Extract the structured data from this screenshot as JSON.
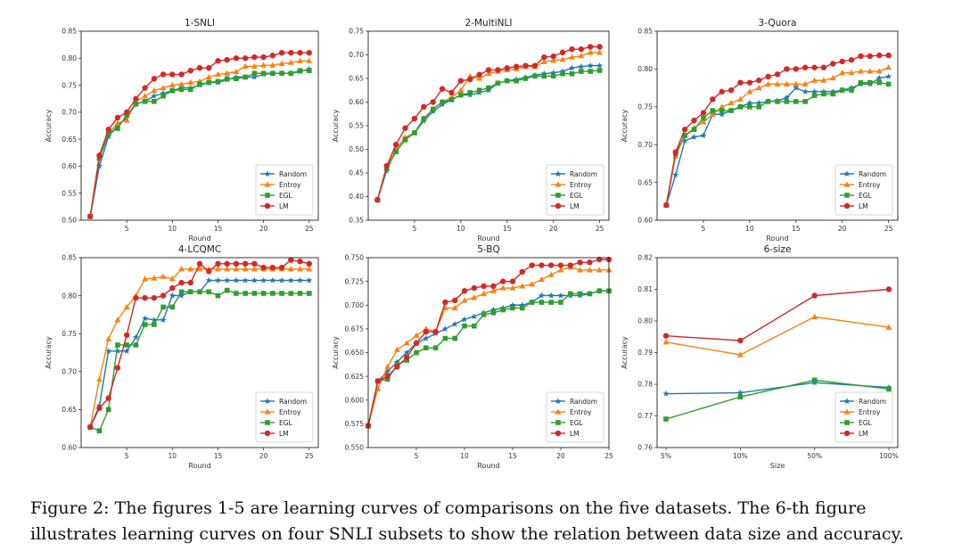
{
  "caption": "Figure 2: The figures 1-5 are learning curves of comparisons on the five datasets. The 6-th figure illustrates learning curves on four SNLI subsets to show the relation between data size and accuracy.",
  "legend": [
    "Random",
    "Entroy",
    "EGL",
    "LM"
  ],
  "colors": {
    "Random": "#1f77b4",
    "Entroy": "#ff7f0e",
    "EGL": "#2ca02c",
    "LM": "#d62728"
  },
  "markers": {
    "Random": "star",
    "Entroy": "triangle",
    "EGL": "square",
    "LM": "circle"
  },
  "chart_data": [
    {
      "type": "line",
      "title": "1-SNLI",
      "xlabel": "Round",
      "ylabel": "Accuracy",
      "xlim": [
        0,
        26
      ],
      "ylim": [
        0.5,
        0.85
      ],
      "xticks": [
        5,
        10,
        15,
        20,
        25
      ],
      "xtick_labels": [
        "5",
        "10",
        "15",
        "20",
        "25"
      ],
      "yticks": [
        0.5,
        0.55,
        0.6,
        0.65,
        0.7,
        0.75,
        0.8,
        0.85
      ],
      "ytick_labels": [
        "0.50",
        "0.55",
        "0.60",
        "0.65",
        "0.70",
        "0.75",
        "0.80",
        "0.85"
      ],
      "legend_position": "lower-right",
      "x": [
        1,
        2,
        3,
        4,
        5,
        6,
        7,
        8,
        9,
        10,
        11,
        12,
        13,
        14,
        15,
        16,
        17,
        18,
        19,
        20,
        21,
        22,
        23,
        24,
        25
      ],
      "series": [
        {
          "name": "Random",
          "values": [
            0.507,
            0.6,
            0.655,
            0.675,
            0.69,
            0.715,
            0.72,
            0.73,
            0.735,
            0.74,
            0.745,
            0.745,
            0.75,
            0.755,
            0.755,
            0.76,
            0.765,
            0.765,
            0.765,
            0.77,
            0.772,
            0.772,
            0.772,
            0.775,
            0.78
          ]
        },
        {
          "name": "Entroy",
          "values": [
            0.507,
            0.615,
            0.66,
            0.68,
            0.685,
            0.72,
            0.73,
            0.74,
            0.745,
            0.75,
            0.752,
            0.755,
            0.757,
            0.765,
            0.77,
            0.772,
            0.775,
            0.785,
            0.785,
            0.787,
            0.787,
            0.79,
            0.792,
            0.795,
            0.795
          ]
        },
        {
          "name": "EGL",
          "values": [
            0.507,
            0.615,
            0.66,
            0.67,
            0.695,
            0.715,
            0.72,
            0.72,
            0.73,
            0.74,
            0.742,
            0.742,
            0.752,
            0.755,
            0.757,
            0.762,
            0.762,
            0.765,
            0.772,
            0.772,
            0.772,
            0.772,
            0.772,
            0.777,
            0.777
          ]
        },
        {
          "name": "LM",
          "values": [
            0.507,
            0.62,
            0.668,
            0.69,
            0.7,
            0.725,
            0.745,
            0.762,
            0.77,
            0.77,
            0.77,
            0.777,
            0.782,
            0.782,
            0.795,
            0.797,
            0.8,
            0.8,
            0.802,
            0.802,
            0.805,
            0.81,
            0.81,
            0.81,
            0.81
          ]
        }
      ]
    },
    {
      "type": "line",
      "title": "2-MultiNLI",
      "xlabel": "Round",
      "ylabel": "Accuracy",
      "xlim": [
        0,
        26
      ],
      "ylim": [
        0.35,
        0.75
      ],
      "xticks": [
        5,
        10,
        15,
        20,
        25
      ],
      "xtick_labels": [
        "5",
        "10",
        "15",
        "20",
        "25"
      ],
      "yticks": [
        0.35,
        0.4,
        0.45,
        0.5,
        0.55,
        0.6,
        0.65,
        0.7,
        0.75
      ],
      "ytick_labels": [
        "0.35",
        "0.40",
        "0.45",
        "0.50",
        "0.55",
        "0.60",
        "0.65",
        "0.70",
        "0.75"
      ],
      "legend_position": "lower-right",
      "x": [
        1,
        2,
        3,
        4,
        5,
        6,
        7,
        8,
        9,
        10,
        11,
        12,
        13,
        14,
        15,
        16,
        17,
        18,
        19,
        20,
        21,
        22,
        23,
        24,
        25
      ],
      "series": [
        {
          "name": "Random",
          "values": [
            0.393,
            0.455,
            0.5,
            0.525,
            0.535,
            0.56,
            0.58,
            0.595,
            0.605,
            0.615,
            0.615,
            0.62,
            0.625,
            0.64,
            0.645,
            0.648,
            0.652,
            0.657,
            0.66,
            0.662,
            0.665,
            0.672,
            0.675,
            0.677,
            0.677
          ]
        },
        {
          "name": "Entroy",
          "values": [
            0.393,
            0.46,
            0.5,
            0.525,
            0.535,
            0.565,
            0.585,
            0.6,
            0.61,
            0.625,
            0.655,
            0.65,
            0.66,
            0.665,
            0.668,
            0.67,
            0.675,
            0.675,
            0.685,
            0.688,
            0.69,
            0.695,
            0.698,
            0.705,
            0.705
          ]
        },
        {
          "name": "EGL",
          "values": [
            0.393,
            0.46,
            0.495,
            0.52,
            0.535,
            0.565,
            0.585,
            0.6,
            0.605,
            0.615,
            0.62,
            0.625,
            0.63,
            0.64,
            0.645,
            0.645,
            0.65,
            0.655,
            0.655,
            0.655,
            0.66,
            0.66,
            0.665,
            0.665,
            0.667
          ]
        },
        {
          "name": "LM",
          "values": [
            0.393,
            0.465,
            0.51,
            0.545,
            0.565,
            0.59,
            0.6,
            0.628,
            0.62,
            0.645,
            0.648,
            0.658,
            0.668,
            0.668,
            0.672,
            0.675,
            0.677,
            0.677,
            0.695,
            0.697,
            0.705,
            0.712,
            0.712,
            0.717,
            0.717
          ]
        }
      ]
    },
    {
      "type": "line",
      "title": "3-Quora",
      "xlabel": "Round",
      "ylabel": "Accuracy",
      "xlim": [
        0,
        26
      ],
      "ylim": [
        0.6,
        0.85
      ],
      "xticks": [
        5,
        10,
        15,
        20,
        25
      ],
      "xtick_labels": [
        "5",
        "10",
        "15",
        "20",
        "25"
      ],
      "yticks": [
        0.6,
        0.65,
        0.7,
        0.75,
        0.8,
        0.85
      ],
      "ytick_labels": [
        "0.60",
        "0.65",
        "0.70",
        "0.75",
        "0.80",
        "0.85"
      ],
      "legend_position": "lower-right",
      "x": [
        1,
        2,
        3,
        4,
        5,
        6,
        7,
        8,
        9,
        10,
        11,
        12,
        13,
        14,
        15,
        16,
        17,
        18,
        19,
        20,
        21,
        22,
        23,
        24,
        25
      ],
      "series": [
        {
          "name": "Random",
          "values": [
            0.62,
            0.66,
            0.705,
            0.71,
            0.712,
            0.74,
            0.74,
            0.745,
            0.75,
            0.755,
            0.755,
            0.757,
            0.758,
            0.762,
            0.775,
            0.77,
            0.77,
            0.77,
            0.77,
            0.772,
            0.775,
            0.78,
            0.78,
            0.788,
            0.79
          ]
        },
        {
          "name": "Entroy",
          "values": [
            0.62,
            0.685,
            0.712,
            0.722,
            0.73,
            0.74,
            0.75,
            0.755,
            0.76,
            0.77,
            0.775,
            0.78,
            0.78,
            0.78,
            0.78,
            0.78,
            0.785,
            0.785,
            0.788,
            0.795,
            0.795,
            0.797,
            0.797,
            0.797,
            0.802
          ]
        },
        {
          "name": "EGL",
          "values": [
            0.62,
            0.688,
            0.712,
            0.72,
            0.735,
            0.745,
            0.745,
            0.745,
            0.75,
            0.75,
            0.75,
            0.757,
            0.757,
            0.757,
            0.757,
            0.757,
            0.765,
            0.767,
            0.767,
            0.772,
            0.772,
            0.782,
            0.782,
            0.782,
            0.78
          ]
        },
        {
          "name": "LM",
          "values": [
            0.62,
            0.69,
            0.72,
            0.732,
            0.742,
            0.76,
            0.77,
            0.772,
            0.782,
            0.782,
            0.785,
            0.79,
            0.793,
            0.8,
            0.8,
            0.802,
            0.802,
            0.802,
            0.807,
            0.81,
            0.812,
            0.817,
            0.817,
            0.818,
            0.818
          ]
        }
      ]
    },
    {
      "type": "line",
      "title": "4-LCQMC",
      "xlabel": "Round",
      "ylabel": "Accuracy",
      "xlim": [
        0,
        26
      ],
      "ylim": [
        0.6,
        0.85
      ],
      "xticks": [
        5,
        10,
        15,
        20,
        25
      ],
      "xtick_labels": [
        "5",
        "10",
        "15",
        "20",
        "25"
      ],
      "yticks": [
        0.6,
        0.65,
        0.7,
        0.75,
        0.8,
        0.85
      ],
      "ytick_labels": [
        "0.60",
        "0.65",
        "0.70",
        "0.75",
        "0.80",
        "0.85"
      ],
      "legend_position": "lower-right",
      "x": [
        1,
        2,
        3,
        4,
        5,
        6,
        7,
        8,
        9,
        10,
        11,
        12,
        13,
        14,
        15,
        16,
        17,
        18,
        19,
        20,
        21,
        22,
        23,
        24,
        25
      ],
      "series": [
        {
          "name": "Random",
          "values": [
            0.627,
            0.655,
            0.727,
            0.727,
            0.727,
            0.745,
            0.77,
            0.768,
            0.768,
            0.8,
            0.8,
            0.805,
            0.805,
            0.82,
            0.82,
            0.82,
            0.82,
            0.82,
            0.82,
            0.82,
            0.82,
            0.82,
            0.82,
            0.82,
            0.82
          ]
        },
        {
          "name": "Entroy",
          "values": [
            0.627,
            0.69,
            0.743,
            0.768,
            0.785,
            0.8,
            0.822,
            0.823,
            0.825,
            0.822,
            0.835,
            0.835,
            0.835,
            0.835,
            0.835,
            0.835,
            0.835,
            0.835,
            0.835,
            0.835,
            0.835,
            0.835,
            0.835,
            0.835,
            0.835
          ]
        },
        {
          "name": "EGL",
          "values": [
            0.627,
            0.622,
            0.65,
            0.735,
            0.735,
            0.735,
            0.762,
            0.762,
            0.785,
            0.785,
            0.805,
            0.805,
            0.805,
            0.805,
            0.8,
            0.807,
            0.803,
            0.803,
            0.803,
            0.803,
            0.803,
            0.803,
            0.803,
            0.803,
            0.803
          ]
        },
        {
          "name": "LM",
          "values": [
            0.627,
            0.652,
            0.665,
            0.705,
            0.748,
            0.797,
            0.797,
            0.797,
            0.8,
            0.81,
            0.817,
            0.817,
            0.842,
            0.832,
            0.842,
            0.842,
            0.842,
            0.842,
            0.842,
            0.837,
            0.837,
            0.837,
            0.847,
            0.845,
            0.842
          ]
        }
      ]
    },
    {
      "type": "line",
      "title": "5-BQ",
      "xlabel": "Round",
      "ylabel": "Accuracy",
      "xlim": [
        0,
        25
      ],
      "ylim": [
        0.55,
        0.75
      ],
      "xticks": [
        5,
        10,
        15,
        20,
        25
      ],
      "xtick_labels": [
        "5",
        "10",
        "15",
        "20",
        "25"
      ],
      "yticks": [
        0.55,
        0.575,
        0.6,
        0.625,
        0.65,
        0.675,
        0.7,
        0.725,
        0.75
      ],
      "ytick_labels": [
        "0.550",
        "0.575",
        "0.600",
        "0.625",
        "0.650",
        "0.675",
        "0.700",
        "0.725",
        "0.750"
      ],
      "legend_position": "lower-right",
      "x": [
        0,
        1,
        2,
        3,
        4,
        5,
        6,
        7,
        8,
        9,
        10,
        11,
        12,
        13,
        14,
        15,
        16,
        17,
        18,
        19,
        20,
        21,
        22,
        23,
        24,
        25
      ],
      "series": [
        {
          "name": "Random",
          "values": [
            0.573,
            0.62,
            0.63,
            0.64,
            0.65,
            0.66,
            0.665,
            0.67,
            0.675,
            0.68,
            0.685,
            0.688,
            0.692,
            0.695,
            0.697,
            0.7,
            0.7,
            0.703,
            0.71,
            0.71,
            0.71,
            0.71,
            0.71,
            0.712,
            0.715,
            0.715
          ]
        },
        {
          "name": "Entroy",
          "values": [
            0.573,
            0.612,
            0.635,
            0.653,
            0.66,
            0.668,
            0.675,
            0.672,
            0.697,
            0.697,
            0.705,
            0.708,
            0.712,
            0.715,
            0.718,
            0.718,
            0.72,
            0.722,
            0.727,
            0.732,
            0.737,
            0.74,
            0.737,
            0.737,
            0.737,
            0.737
          ]
        },
        {
          "name": "EGL",
          "values": [
            0.573,
            0.62,
            0.622,
            0.637,
            0.642,
            0.65,
            0.655,
            0.655,
            0.665,
            0.665,
            0.678,
            0.678,
            0.69,
            0.692,
            0.695,
            0.697,
            0.697,
            0.703,
            0.703,
            0.703,
            0.703,
            0.712,
            0.712,
            0.712,
            0.715,
            0.715
          ]
        },
        {
          "name": "LM",
          "values": [
            0.573,
            0.62,
            0.625,
            0.635,
            0.645,
            0.66,
            0.672,
            0.672,
            0.703,
            0.705,
            0.715,
            0.718,
            0.72,
            0.72,
            0.725,
            0.725,
            0.735,
            0.742,
            0.742,
            0.742,
            0.742,
            0.742,
            0.745,
            0.745,
            0.748,
            0.748
          ]
        }
      ]
    },
    {
      "type": "line",
      "title": "6-size",
      "xlabel": "Size",
      "ylabel": "Accuracy",
      "ylim": [
        0.76,
        0.82
      ],
      "categories": [
        "5%",
        "10%",
        "50%",
        "100%"
      ],
      "yticks": [
        0.76,
        0.77,
        0.78,
        0.79,
        0.8,
        0.81,
        0.82
      ],
      "ytick_labels": [
        "0.76",
        "0.77",
        "0.78",
        "0.79",
        "0.80",
        "0.81",
        "0.82"
      ],
      "legend_position": "lower-right",
      "series": [
        {
          "name": "Random",
          "values": [
            0.777,
            0.7773,
            0.7805,
            0.779
          ]
        },
        {
          "name": "Entroy",
          "values": [
            0.7933,
            0.7893,
            0.8013,
            0.798
          ]
        },
        {
          "name": "EGL",
          "values": [
            0.769,
            0.776,
            0.7813,
            0.7785
          ]
        },
        {
          "name": "LM",
          "values": [
            0.7953,
            0.7938,
            0.808,
            0.81
          ]
        }
      ]
    }
  ]
}
